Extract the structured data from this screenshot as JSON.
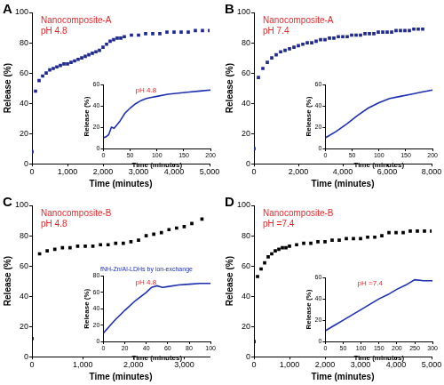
{
  "chart_data": [
    {
      "panel": "A",
      "type": "scatter",
      "marker": "square",
      "color": "#1f2a90",
      "grid": false,
      "annotations": [
        {
          "text": "Nanocomposite-A",
          "color": "#e8262a"
        },
        {
          "text": "pH 4.8",
          "color": "#e8262a"
        }
      ],
      "x_label": "Time (minutes)",
      "y_label": "Release (%)",
      "x": [
        0,
        100,
        200,
        300,
        400,
        500,
        600,
        700,
        800,
        900,
        1000,
        1100,
        1200,
        1300,
        1400,
        1500,
        1600,
        1700,
        1800,
        1900,
        2000,
        2100,
        2200,
        2300,
        2400,
        2500,
        2600,
        2800,
        3000,
        3200,
        3400,
        3600,
        3800,
        4000,
        4200,
        4400,
        4600,
        4800,
        5000
      ],
      "values": [
        8,
        48,
        55,
        58,
        60,
        62,
        63,
        64,
        65,
        66,
        66,
        67,
        68,
        69,
        70,
        71,
        72,
        73,
        74,
        75,
        77,
        79,
        81,
        82,
        83,
        83,
        84,
        85,
        85,
        86,
        86,
        86,
        87,
        87,
        87,
        87,
        88,
        88,
        88
      ],
      "xlim": [
        0,
        5000
      ],
      "xticks": [
        0,
        {
          "value": 1000,
          "label": "1,000"
        },
        {
          "value": 2000,
          "label": "2,000"
        },
        {
          "value": 3000,
          "label": "3,000"
        },
        {
          "value": 4000,
          "label": "4,000"
        },
        {
          "value": 5000,
          "label": "5,000"
        }
      ],
      "ylim": [
        0,
        100
      ],
      "yticks": [
        0,
        20,
        40,
        60,
        80,
        100
      ],
      "inset": {
        "type": "line",
        "color": "#1c2fb0",
        "grid": false,
        "annotations": [
          {
            "text": "pH 4.8",
            "color": "#e8262a"
          }
        ],
        "x_label": "Time (minutes)",
        "y_label": "Release (%)",
        "x": [
          0,
          5,
          10,
          15,
          20,
          25,
          30,
          40,
          50,
          60,
          70,
          80,
          90,
          100,
          120,
          140,
          160,
          180,
          200
        ],
        "values": [
          10,
          11,
          13,
          20,
          19,
          22,
          25,
          33,
          38,
          42,
          45,
          47,
          48,
          49,
          51,
          52,
          53,
          54,
          55
        ],
        "xlim": [
          0,
          200
        ],
        "xticks": [
          0,
          50,
          100,
          150,
          200
        ],
        "ylim": [
          0,
          60
        ],
        "yticks": [
          0,
          20,
          40,
          60
        ]
      }
    },
    {
      "panel": "B",
      "type": "scatter",
      "marker": "square",
      "color": "#1f2a90",
      "grid": false,
      "annotations": [
        {
          "text": "Nanocomposite-A",
          "color": "#e8262a"
        },
        {
          "text": "pH 7.4",
          "color": "#e8262a"
        }
      ],
      "x_label": "Time (minutes)",
      "y_label": "Release (%)",
      "x": [
        0,
        200,
        400,
        600,
        800,
        1000,
        1200,
        1400,
        1600,
        1800,
        2000,
        2200,
        2400,
        2600,
        2800,
        3000,
        3200,
        3400,
        3600,
        3800,
        4000,
        4200,
        4400,
        4600,
        4800,
        5000,
        5200,
        5400,
        5600,
        5800,
        6000,
        6200,
        6400,
        6600,
        6800,
        7000,
        7200,
        7400,
        7600
      ],
      "values": [
        10,
        57,
        63,
        67,
        70,
        72,
        74,
        75,
        76,
        77,
        78,
        79,
        80,
        80,
        81,
        82,
        82,
        83,
        83,
        84,
        84,
        84,
        85,
        85,
        85,
        86,
        86,
        86,
        87,
        87,
        87,
        87,
        88,
        88,
        88,
        88,
        89,
        89,
        89
      ],
      "xlim": [
        0,
        8000
      ],
      "xticks": [
        0,
        {
          "value": 2000,
          "label": "2,000"
        },
        {
          "value": 4000,
          "label": "4,000"
        },
        {
          "value": 6000,
          "label": "6,000"
        },
        {
          "value": 8000,
          "label": "8,000"
        }
      ],
      "ylim": [
        0,
        100
      ],
      "yticks": [
        0,
        20,
        40,
        60,
        80,
        100
      ],
      "inset": {
        "type": "line",
        "color": "#1c2fb0",
        "grid": false,
        "annotations": [],
        "x_label": "Time (minutes)",
        "y_label": "Release (%)",
        "x": [
          0,
          20,
          40,
          60,
          80,
          100,
          120,
          140,
          160,
          180,
          200
        ],
        "values": [
          10,
          16,
          23,
          31,
          38,
          43,
          47,
          49,
          51,
          53,
          55
        ],
        "xlim": [
          0,
          200
        ],
        "xticks": [
          0,
          50,
          100,
          150,
          200
        ],
        "ylim": [
          0,
          60
        ],
        "yticks": [
          0,
          20,
          40,
          60
        ]
      }
    },
    {
      "panel": "C",
      "type": "scatter",
      "marker": "square",
      "color": "#000000",
      "grid": false,
      "annotations": [
        {
          "text": "Nanocomposite-B",
          "color": "#e8262a"
        },
        {
          "text": "pH 4.8",
          "color": "#e8262a"
        }
      ],
      "x_label": "Time (minutes)",
      "y_label": "Release (%)",
      "x": [
        0,
        150,
        300,
        450,
        600,
        750,
        900,
        1050,
        1200,
        1350,
        1500,
        1650,
        1800,
        1950,
        2100,
        2250,
        2400,
        2550,
        2700,
        2850,
        3000,
        3150,
        3350
      ],
      "values": [
        12,
        68,
        70,
        71,
        72,
        72,
        73,
        73,
        73,
        74,
        74,
        75,
        75,
        76,
        77,
        80,
        81,
        82,
        84,
        85,
        86,
        88,
        91
      ],
      "xlim": [
        0,
        3500
      ],
      "xticks": [
        0,
        {
          "value": 1000,
          "label": "1,000"
        },
        {
          "value": 2000,
          "label": "2,000"
        },
        {
          "value": 3000,
          "label": "3,000"
        }
      ],
      "ylim": [
        0,
        100
      ],
      "yticks": [
        0,
        20,
        40,
        60,
        80,
        100
      ],
      "inset": {
        "type": "line",
        "color": "#1c2fb0",
        "grid": false,
        "title": "fNH-Zn/Al-LDHs by ion-exchange",
        "annotations": [
          {
            "text": "pH 4.8",
            "color": "#e8262a"
          }
        ],
        "x_label": "Time (minutes)",
        "y_label": "Release (%)",
        "x": [
          0,
          10,
          20,
          30,
          40,
          45,
          50,
          55,
          60,
          70,
          80,
          90,
          100
        ],
        "values": [
          10,
          25,
          38,
          50,
          60,
          66,
          68,
          66,
          67,
          69,
          70,
          71,
          71
        ],
        "xlim": [
          0,
          100
        ],
        "xticks": [
          0,
          20,
          40,
          60,
          80,
          100
        ],
        "ylim": [
          0,
          80
        ],
        "yticks": [
          0,
          20,
          40,
          60,
          80
        ]
      }
    },
    {
      "panel": "D",
      "type": "scatter",
      "marker": "square",
      "color": "#000000",
      "grid": false,
      "annotations": [
        {
          "text": "Nanocomposite-B",
          "color": "#e8262a"
        },
        {
          "text": "pH =7.4",
          "color": "#e8262a"
        }
      ],
      "x_label": "Time (minutes)",
      "y_label": "Release (%)",
      "x": [
        0,
        100,
        200,
        300,
        400,
        500,
        600,
        700,
        800,
        900,
        1000,
        1200,
        1400,
        1600,
        1800,
        2000,
        2200,
        2400,
        2600,
        2800,
        3000,
        3200,
        3400,
        3600,
        3800,
        4000,
        4200,
        4400,
        4600,
        4800,
        5000
      ],
      "values": [
        10,
        53,
        58,
        62,
        66,
        68,
        70,
        71,
        72,
        72,
        73,
        74,
        75,
        75,
        76,
        76,
        77,
        77,
        78,
        78,
        78,
        79,
        79,
        80,
        82,
        82,
        82,
        83,
        83,
        83,
        83
      ],
      "xlim": [
        0,
        5000
      ],
      "xticks": [
        0,
        {
          "value": 1000,
          "label": "1,000"
        },
        {
          "value": 2000,
          "label": "2,000"
        },
        {
          "value": 3000,
          "label": "3,000"
        },
        {
          "value": 4000,
          "label": "4,000"
        },
        {
          "value": 5000,
          "label": "5,000"
        }
      ],
      "ylim": [
        0,
        100
      ],
      "yticks": [
        0,
        20,
        40,
        60,
        80,
        100
      ],
      "inset": {
        "type": "line",
        "color": "#1c2fb0",
        "grid": false,
        "annotations": [
          {
            "text": "pH =7.4",
            "color": "#e8262a"
          }
        ],
        "x_label": "Time (minutes)",
        "y_label": "Release (%)",
        "x": [
          0,
          25,
          50,
          75,
          100,
          125,
          150,
          175,
          200,
          225,
          250,
          275,
          300
        ],
        "values": [
          10,
          15,
          20,
          25,
          30,
          35,
          40,
          44,
          49,
          53,
          58,
          57,
          57
        ],
        "xlim": [
          0,
          300
        ],
        "xticks": [
          0,
          50,
          100,
          150,
          200,
          250,
          300
        ],
        "ylim": [
          0,
          60
        ],
        "yticks": [
          0,
          20,
          40,
          60
        ]
      }
    }
  ]
}
